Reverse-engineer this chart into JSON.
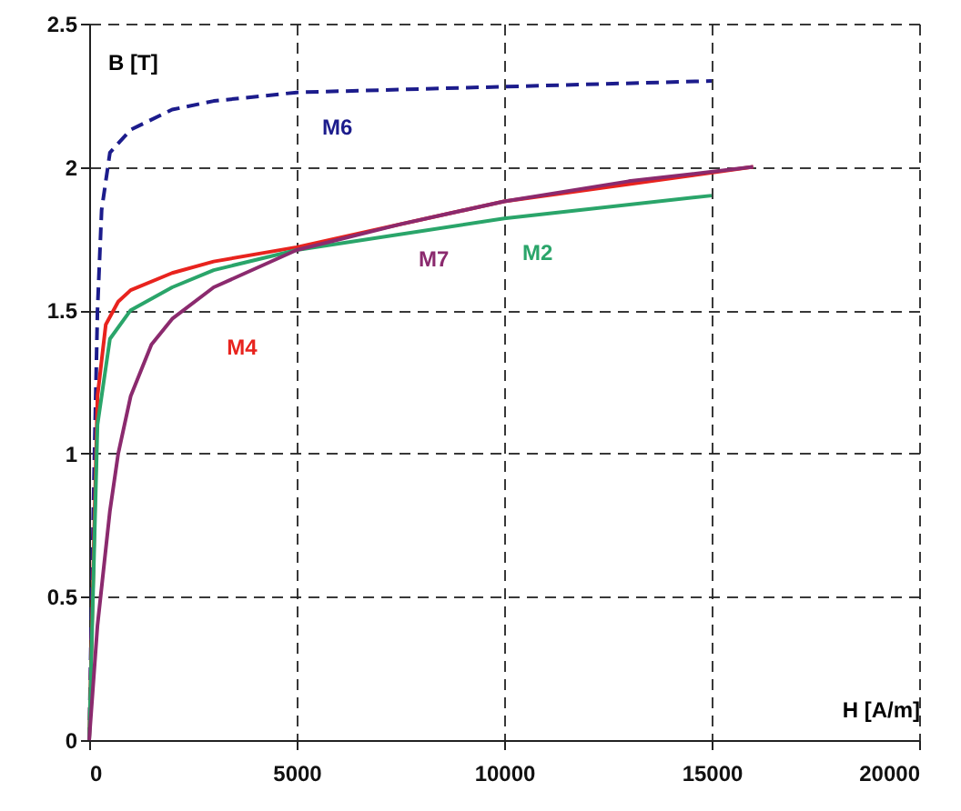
{
  "chart_data": {
    "type": "line",
    "xlabel": "H [A/m]",
    "ylabel": "B [T]",
    "xlim": [
      0,
      20000
    ],
    "xticks": [
      0,
      5000,
      10000,
      15000,
      20000
    ],
    "ylim": [
      0,
      2.5
    ],
    "yticks": [
      0,
      0.5,
      1,
      1.5,
      2,
      2.5
    ],
    "grid": true,
    "series": [
      {
        "name": "M6",
        "color": "#1c1c8c",
        "line_style": "dashed",
        "x": [
          0,
          100,
          200,
          300,
          500,
          1000,
          2000,
          3000,
          5000,
          10000,
          15000
        ],
        "values": [
          0,
          0.8,
          1.5,
          1.85,
          2.05,
          2.13,
          2.2,
          2.23,
          2.26,
          2.28,
          2.3
        ]
      },
      {
        "name": "M4",
        "color": "#e8231e",
        "line_style": "solid",
        "x": [
          0,
          100,
          200,
          400,
          700,
          1000,
          2000,
          3000,
          5000,
          10000,
          16000
        ],
        "values": [
          0,
          0.6,
          1.2,
          1.45,
          1.53,
          1.57,
          1.63,
          1.67,
          1.72,
          1.88,
          2.0
        ]
      },
      {
        "name": "M2",
        "color": "#2aa56a",
        "line_style": "solid",
        "x": [
          0,
          200,
          500,
          1000,
          2000,
          3000,
          5000,
          10000,
          15000
        ],
        "values": [
          0,
          1.1,
          1.4,
          1.5,
          1.58,
          1.64,
          1.71,
          1.82,
          1.9
        ]
      },
      {
        "name": "M7",
        "color": "#8b2a6e",
        "line_style": "solid",
        "x": [
          0,
          200,
          500,
          700,
          1000,
          1500,
          2000,
          3000,
          5000,
          7500,
          10000,
          13000,
          16000
        ],
        "values": [
          0,
          0.4,
          0.8,
          1.0,
          1.2,
          1.38,
          1.47,
          1.58,
          1.71,
          1.8,
          1.88,
          1.95,
          2.0
        ]
      }
    ]
  }
}
